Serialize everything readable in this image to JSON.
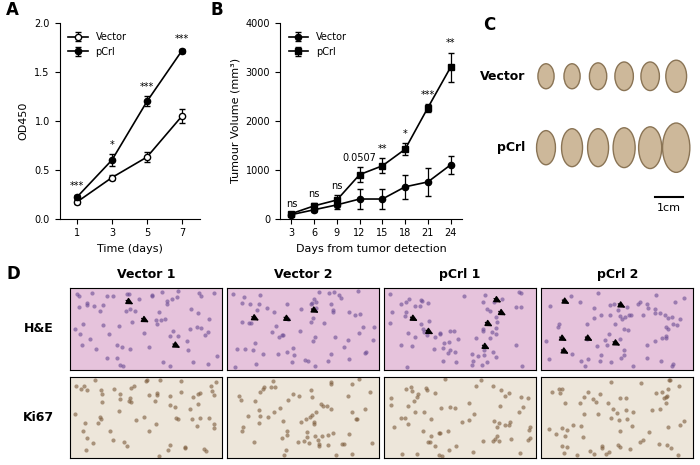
{
  "chart_data": [
    {
      "type": "line",
      "title": "A",
      "x_label": "Time (days)",
      "y_label": "OD450",
      "x": [
        1,
        3,
        5,
        7
      ],
      "series": [
        {
          "name": "Vector",
          "color": "#000000",
          "marker": "circle_open",
          "values": [
            0.17,
            0.42,
            0.63,
            1.05
          ],
          "errors": [
            0.02,
            0.03,
            0.05,
            0.07
          ]
        },
        {
          "name": "pCrl",
          "color": "#000000",
          "marker": "circle",
          "values": [
            0.22,
            0.6,
            1.2,
            1.72
          ],
          "errors": [
            0.02,
            0.06,
            0.05,
            0.02
          ]
        }
      ],
      "annotations": [
        "***",
        "*",
        "***",
        "***"
      ],
      "xlim": [
        0,
        8
      ],
      "xticks": [
        1,
        3,
        5,
        7
      ],
      "ylim": [
        0,
        2.0
      ],
      "yticks": [
        {
          "value": 0,
          "label": "0.0"
        },
        {
          "value": 0.5,
          "label": "0.5"
        },
        {
          "value": 1.0,
          "label": "1.0"
        },
        {
          "value": 1.5,
          "label": "1.5"
        },
        {
          "value": 2.0,
          "label": "2.0"
        }
      ],
      "legend": "upper left"
    },
    {
      "type": "line",
      "title": "B",
      "x_label": "Days from tumor detection",
      "y_label": "Tumour Volume (mm³)",
      "x": [
        3,
        6,
        9,
        12,
        15,
        18,
        21,
        24
      ],
      "series": [
        {
          "name": "Vector",
          "color": "#000000",
          "marker": "circle",
          "values": [
            80,
            180,
            280,
            400,
            400,
            650,
            750,
            1100
          ],
          "errors": [
            20,
            40,
            80,
            200,
            200,
            250,
            280,
            180
          ]
        },
        {
          "name": "pCrl",
          "color": "#000000",
          "marker": "square",
          "values": [
            100,
            260,
            380,
            900,
            1080,
            1420,
            2270,
            3100
          ],
          "errors": [
            20,
            50,
            100,
            150,
            150,
            120,
            80,
            300
          ]
        }
      ],
      "annotations": [
        "ns",
        "ns",
        "ns",
        "0.0507",
        "**",
        "*",
        "***",
        "**"
      ],
      "xlim": [
        1.5,
        25.5
      ],
      "xticks": [
        3,
        6,
        9,
        12,
        15,
        18,
        21,
        24
      ],
      "ylim": [
        0,
        4000
      ],
      "yticks": [
        0,
        1000,
        2000,
        3000,
        4000
      ],
      "legend": "upper left"
    }
  ],
  "photo": {
    "title": "C",
    "rows": [
      "Vector",
      "pCrl"
    ],
    "scale_bar": "1cm"
  },
  "micrographs": {
    "title": "D",
    "columns": [
      "Vector 1",
      "Vector 2",
      "pCrl 1",
      "pCrl 2"
    ],
    "rows": [
      "H&E",
      "Ki67"
    ]
  }
}
